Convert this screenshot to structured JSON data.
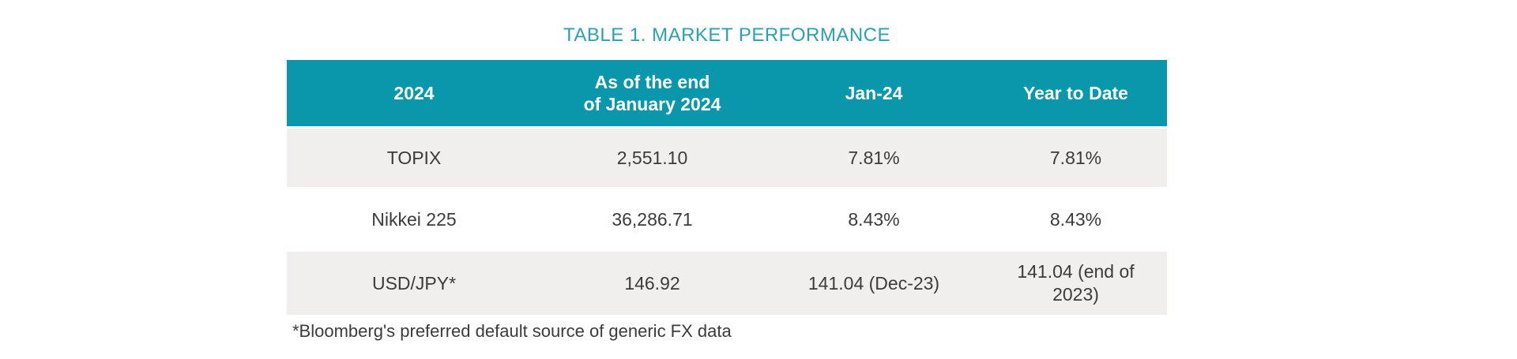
{
  "title": "TABLE 1. MARKET PERFORMANCE",
  "colors": {
    "header_bg": "#0A97AB",
    "header_text": "#FFFFFF",
    "title_text": "#2BA0B4",
    "row_alt_bg": "#F0EFED",
    "body_text": "#3B3B3B"
  },
  "table": {
    "columns": [
      "2024",
      "As of the end\nof January 2024",
      "Jan-24",
      "Year to Date"
    ],
    "rows": [
      {
        "label": "TOPIX",
        "values": [
          "2,551.10",
          "7.81%",
          "7.81%"
        ]
      },
      {
        "label": "Nikkei 225",
        "values": [
          "36,286.71",
          "8.43%",
          "8.43%"
        ]
      },
      {
        "label": "USD/JPY*",
        "values": [
          "146.92",
          "141.04 (Dec-23)",
          "141.04 (end of\n2023)"
        ]
      }
    ]
  },
  "footnote": "*Bloomberg's preferred default source of generic FX data"
}
